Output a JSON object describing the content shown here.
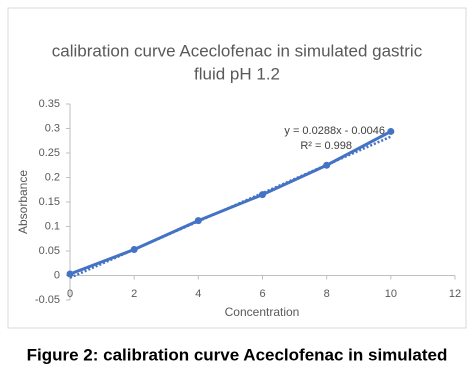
{
  "chart_data": {
    "type": "line",
    "title": [
      "calibration curve Aceclofenac in simulated gastric",
      "fluid pH 1.2"
    ],
    "x_label": "Concentration",
    "y_label": "Absorbance",
    "x": [
      0,
      2,
      4,
      6,
      8,
      10
    ],
    "series": [
      {
        "name": "Absorbance",
        "color": "#4472c4",
        "values": [
          0.003,
          0.053,
          0.112,
          0.165,
          0.225,
          0.294
        ]
      }
    ],
    "trendline": {
      "slope": 0.0288,
      "intercept": -0.0046,
      "label": "y = 0.0288x - 0.0046",
      "r2_label": "R² = 0.998"
    },
    "xlim": [
      0,
      12
    ],
    "xticks": [
      0,
      2,
      4,
      6,
      8,
      10,
      12
    ],
    "ylim": [
      -0.05,
      0.35
    ],
    "yticks": [
      -0.05,
      0,
      0.05,
      0.1,
      0.15,
      0.2,
      0.25,
      0.3,
      0.35
    ],
    "grid": false
  },
  "caption": "Figure 2: calibration curve Aceclofenac in simulated"
}
